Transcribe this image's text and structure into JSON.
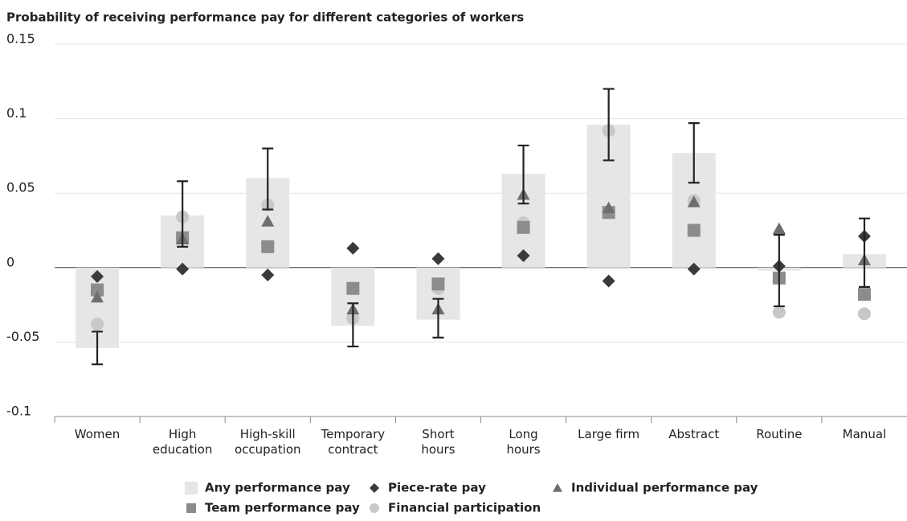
{
  "chart_data": {
    "type": "bar",
    "title": "Probability of receiving performance pay for different categories of workers",
    "categories": [
      "Women",
      "High\neducation",
      "High-skill\noccupation",
      "Temporary\ncontract",
      "Short\nhours",
      "Long\nhours",
      "Large firm",
      "Abstract",
      "Routine",
      "Manual"
    ],
    "ylim": [
      -0.1,
      0.15
    ],
    "yticks": [
      -0.1,
      -0.05,
      0,
      0.05,
      0.1,
      0.15
    ],
    "grid": true,
    "series": [
      {
        "name": "Any performance pay",
        "marker": "bar",
        "color": "#e6e6e6",
        "values": [
          -0.054,
          0.035,
          0.06,
          -0.039,
          -0.035,
          0.063,
          0.096,
          0.077,
          -0.002,
          0.009
        ],
        "ci_low": [
          -0.065,
          0.014,
          0.039,
          -0.053,
          -0.047,
          0.043,
          0.072,
          0.057,
          -0.026,
          -0.013
        ],
        "ci_high": [
          -0.043,
          0.058,
          0.08,
          -0.024,
          -0.021,
          0.082,
          0.12,
          0.097,
          0.022,
          0.033
        ]
      },
      {
        "name": "Piece-rate pay",
        "marker": "diamond",
        "color": "#3a3a3a",
        "values": [
          -0.006,
          -0.001,
          -0.005,
          0.013,
          0.006,
          0.008,
          -0.009,
          -0.001,
          0.001,
          0.021
        ]
      },
      {
        "name": "Individual performance pay",
        "marker": "triangle",
        "color": "#6e6e6e",
        "values": [
          -0.02,
          0.019,
          0.031,
          -0.028,
          -0.028,
          0.049,
          0.04,
          0.044,
          0.026,
          0.005
        ]
      },
      {
        "name": "Team performance pay",
        "marker": "square",
        "color": "#8c8c8c",
        "values": [
          -0.015,
          0.02,
          0.014,
          -0.014,
          -0.011,
          0.027,
          0.037,
          0.025,
          -0.007,
          -0.018
        ]
      },
      {
        "name": "Financial participation",
        "marker": "circle",
        "color": "#c8c8c8",
        "values": [
          -0.038,
          0.034,
          0.042,
          -0.034,
          -0.014,
          0.03,
          0.092,
          0.045,
          -0.03,
          -0.031
        ]
      }
    ]
  }
}
